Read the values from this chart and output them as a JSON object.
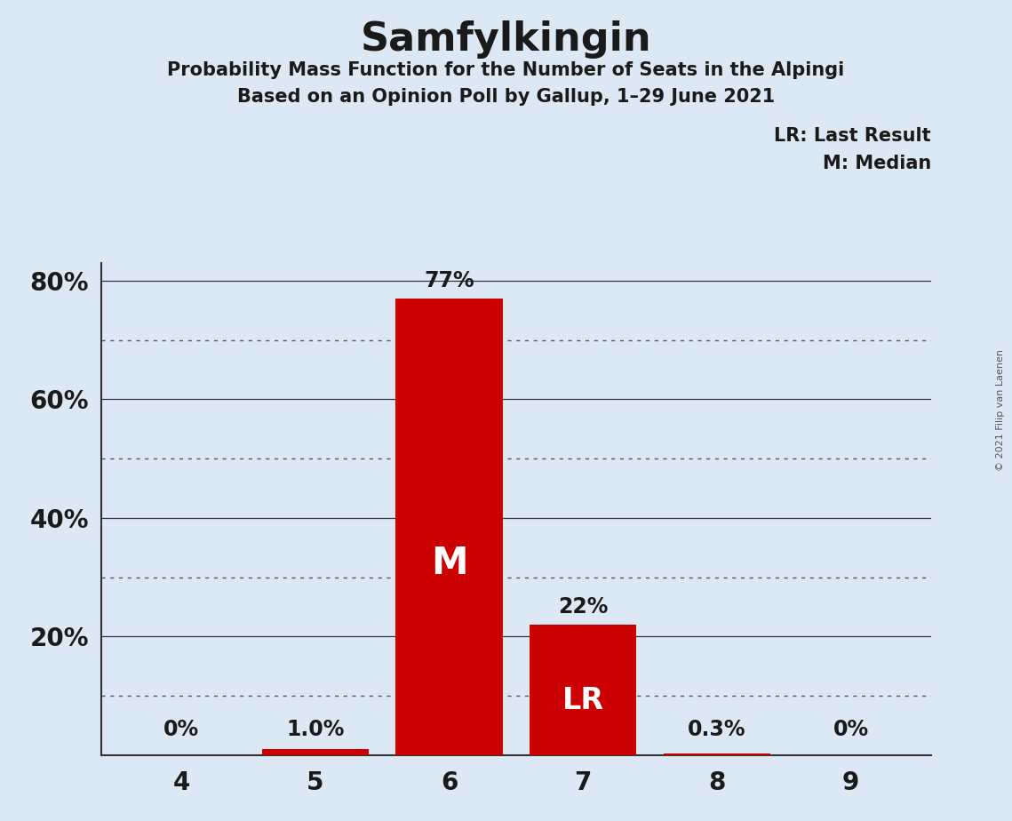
{
  "title": "Samfylkingin",
  "subtitle1": "Probability Mass Function for the Number of Seats in the Alpingi",
  "subtitle2": "Based on an Opinion Poll by Gallup, 1–29 June 2021",
  "copyright": "© 2021 Filip van Laenen",
  "legend_lr": "LR: Last Result",
  "legend_m": "M: Median",
  "categories": [
    4,
    5,
    6,
    7,
    8,
    9
  ],
  "values": [
    0.0,
    1.0,
    77.0,
    22.0,
    0.3,
    0.0
  ],
  "bar_labels": [
    "0%",
    "1.0%",
    "77%",
    "22%",
    "0.3%",
    "0%"
  ],
  "bar_color": "#cc0000",
  "background_color": "#dce9f5",
  "text_color": "#1a1a1a",
  "median_bar": 6,
  "lr_bar": 7,
  "ylim": [
    0,
    83
  ],
  "solid_yticks": [
    20,
    40,
    60,
    80
  ],
  "dotted_yticks": [
    10,
    30,
    50,
    70
  ],
  "ytick_positions": [
    20,
    40,
    60,
    80
  ],
  "ytick_labels": [
    "20%",
    "40%",
    "60%",
    "80%"
  ]
}
